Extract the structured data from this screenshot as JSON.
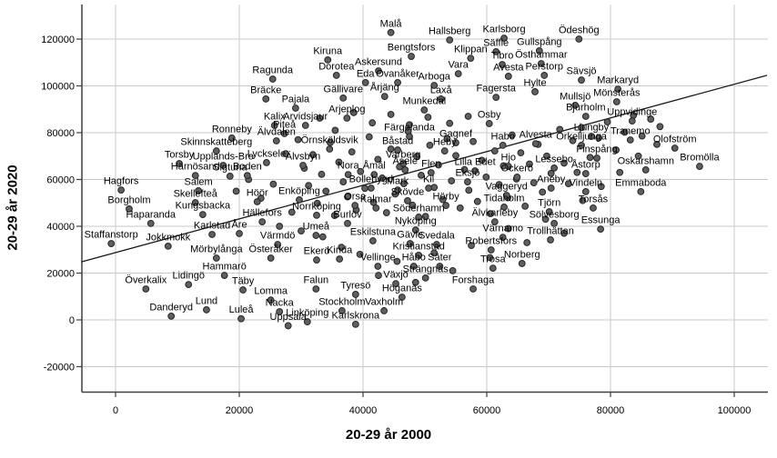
{
  "chart_data": {
    "type": "scatter",
    "title": "",
    "xlabel": "20-29 år 2000",
    "ylabel": "20-29 år 2020",
    "x_ticks": [
      0,
      20000,
      40000,
      60000,
      80000,
      100000
    ],
    "y_ticks": [
      -20000,
      0,
      20000,
      40000,
      60000,
      80000,
      100000,
      120000
    ],
    "xlim": [
      -5500,
      105400
    ],
    "ylim": [
      -31000,
      134700
    ],
    "grid": true,
    "legend": "none",
    "trend_line": {
      "x1": -5500,
      "y1": 24800,
      "x2": 105300,
      "y2": 104500
    },
    "points": [
      {
        "label": "Malå",
        "x": 44500,
        "y": 122800
      },
      {
        "label": "Hallsberg",
        "x": 54000,
        "y": 119600
      },
      {
        "label": "Karlsborg",
        "x": 62800,
        "y": 120400
      },
      {
        "label": "Ödeshög",
        "x": 74900,
        "y": 120000
      },
      {
        "label": "Bengtsfors",
        "x": 47800,
        "y": 112600
      },
      {
        "label": "Säffle",
        "x": 61500,
        "y": 114600
      },
      {
        "label": "Gullspång",
        "x": 68500,
        "y": 115000
      },
      {
        "label": "Klippan",
        "x": 57400,
        "y": 111800
      },
      {
        "label": "Tibro",
        "x": 62500,
        "y": 109100
      },
      {
        "label": "Östhammar",
        "x": 68800,
        "y": 109500
      },
      {
        "label": "Kiruna",
        "x": 34300,
        "y": 111100
      },
      {
        "label": "Dorotea",
        "x": 35700,
        "y": 104500
      },
      {
        "label": "Askersund",
        "x": 42500,
        "y": 106400
      },
      {
        "label": "Eda",
        "x": 40400,
        "y": 101400
      },
      {
        "label": "Ovanåker",
        "x": 45600,
        "y": 101400
      },
      {
        "label": "Vara",
        "x": 55400,
        "y": 105200
      },
      {
        "label": "Arboga",
        "x": 51500,
        "y": 100200
      },
      {
        "label": "Avesta",
        "x": 63500,
        "y": 104100
      },
      {
        "label": "Perstorp",
        "x": 69300,
        "y": 104500
      },
      {
        "label": "Sävsjö",
        "x": 75300,
        "y": 102500
      },
      {
        "label": "Ragunda",
        "x": 25400,
        "y": 102900
      },
      {
        "label": "Bräcke",
        "x": 24300,
        "y": 94400
      },
      {
        "label": "Pajala",
        "x": 29100,
        "y": 90500
      },
      {
        "label": "Gällivare",
        "x": 36800,
        "y": 94800
      },
      {
        "label": "Årjäng",
        "x": 43500,
        "y": 95500
      },
      {
        "label": "Laxå",
        "x": 52600,
        "y": 94400
      },
      {
        "label": "Fagersta",
        "x": 61500,
        "y": 95100
      },
      {
        "label": "Hylte",
        "x": 67800,
        "y": 97500
      },
      {
        "label": "Markaryd",
        "x": 81200,
        "y": 98600
      },
      {
        "label": "Mullsjö",
        "x": 74300,
        "y": 91700
      },
      {
        "label": "Mönsterås",
        "x": 81000,
        "y": 93200
      },
      {
        "label": "Kalix",
        "x": 25700,
        "y": 83100
      },
      {
        "label": "Arvidsjaur",
        "x": 30700,
        "y": 83100
      },
      {
        "label": "Arjeplog",
        "x": 37400,
        "y": 86200
      },
      {
        "label": "Piteå",
        "x": 27300,
        "y": 79600
      },
      {
        "label": "Munkedal",
        "x": 49900,
        "y": 89700
      },
      {
        "label": "Osby",
        "x": 60400,
        "y": 83900
      },
      {
        "label": "Bjurholm",
        "x": 76000,
        "y": 87000
      },
      {
        "label": "Uppvidinge",
        "x": 83500,
        "y": 85000
      },
      {
        "label": "Ronneby",
        "x": 18800,
        "y": 77700
      },
      {
        "label": "Älvdalen",
        "x": 26000,
        "y": 76500
      },
      {
        "label": "Örnsköldsvik",
        "x": 34600,
        "y": 73000
      },
      {
        "label": "Skinnskatteberg",
        "x": 16300,
        "y": 72200
      },
      {
        "label": "Båstad",
        "x": 45600,
        "y": 72600
      },
      {
        "label": "Varberg",
        "x": 46500,
        "y": 66800
      },
      {
        "label": "Färgelanda",
        "x": 47500,
        "y": 78400
      },
      {
        "label": "Gagnef",
        "x": 55000,
        "y": 75700
      },
      {
        "label": "Ljungby",
        "x": 76900,
        "y": 78400
      },
      {
        "label": "Tranemo",
        "x": 83200,
        "y": 76900
      },
      {
        "label": "Heby",
        "x": 53200,
        "y": 72200
      },
      {
        "label": "Habo",
        "x": 62600,
        "y": 74600
      },
      {
        "label": "Alvesta",
        "x": 67900,
        "y": 75300
      },
      {
        "label": "Örkelljunga",
        "x": 75300,
        "y": 74600
      },
      {
        "label": "Olofström",
        "x": 90400,
        "y": 73400
      },
      {
        "label": "Finspång",
        "x": 77800,
        "y": 69100
      },
      {
        "label": "Torsby",
        "x": 10300,
        "y": 66800
      },
      {
        "label": "Upplands-Bro",
        "x": 17400,
        "y": 66000
      },
      {
        "label": "Lycksele",
        "x": 24400,
        "y": 67200
      },
      {
        "label": "Härnösand",
        "x": 12900,
        "y": 61700
      },
      {
        "label": "Sigtuna",
        "x": 18500,
        "y": 61400
      },
      {
        "label": "Boden",
        "x": 21300,
        "y": 61700
      },
      {
        "label": "Älvsbyn",
        "x": 30300,
        "y": 66000
      },
      {
        "label": "Nora",
        "x": 37600,
        "y": 62100
      },
      {
        "label": "Åmål",
        "x": 41800,
        "y": 62100
      },
      {
        "label": "Åsele",
        "x": 46800,
        "y": 64100
      },
      {
        "label": "Flen",
        "x": 51000,
        "y": 62900
      },
      {
        "label": "Lilla Edet",
        "x": 58100,
        "y": 63700
      },
      {
        "label": "Hjo",
        "x": 63500,
        "y": 65600
      },
      {
        "label": "Lessebo",
        "x": 70900,
        "y": 64900
      },
      {
        "label": "Åstorp",
        "x": 76000,
        "y": 62500
      },
      {
        "label": "Oskarshamn",
        "x": 85700,
        "y": 64100
      },
      {
        "label": "Bromölla",
        "x": 94400,
        "y": 65600
      },
      {
        "label": "Hagfors",
        "x": 900,
        "y": 55500
      },
      {
        "label": "Salem",
        "x": 13400,
        "y": 55200
      },
      {
        "label": "Skellefteå",
        "x": 12900,
        "y": 50100
      },
      {
        "label": "Kungsbacka",
        "x": 14100,
        "y": 45000
      },
      {
        "label": "Borgholm",
        "x": 2200,
        "y": 47400
      },
      {
        "label": "Haparanda",
        "x": 5700,
        "y": 41200
      },
      {
        "label": "Höör",
        "x": 22900,
        "y": 50500
      },
      {
        "label": "Enköping",
        "x": 29700,
        "y": 51300
      },
      {
        "label": "Eksjö",
        "x": 56900,
        "y": 59000
      },
      {
        "label": "Öckerö",
        "x": 64900,
        "y": 61000
      },
      {
        "label": "Bollebygd",
        "x": 41300,
        "y": 56300
      },
      {
        "label": "Mark",
        "x": 45600,
        "y": 55500
      },
      {
        "label": "Kil",
        "x": 50600,
        "y": 56300
      },
      {
        "label": "Skövde",
        "x": 47200,
        "y": 50900
      },
      {
        "label": "Orsa",
        "x": 38700,
        "y": 48900
      },
      {
        "label": "Kalmar",
        "x": 42100,
        "y": 47800
      },
      {
        "label": "Hörby",
        "x": 53400,
        "y": 48900
      },
      {
        "label": "Aneby",
        "x": 70400,
        "y": 56300
      },
      {
        "label": "Vindeln",
        "x": 76000,
        "y": 54800
      },
      {
        "label": "Emmaboda",
        "x": 84900,
        "y": 54800
      },
      {
        "label": "Vaggeryd",
        "x": 63200,
        "y": 53200
      },
      {
        "label": "Tidaholm",
        "x": 62800,
        "y": 48200
      },
      {
        "label": "Tjörn",
        "x": 70100,
        "y": 46200
      },
      {
        "label": "Torsås",
        "x": 77200,
        "y": 47800
      },
      {
        "label": "Söderhamn",
        "x": 49000,
        "y": 43900
      },
      {
        "label": "Älvkarleby",
        "x": 61300,
        "y": 41900
      },
      {
        "label": "Sölvesborg",
        "x": 70900,
        "y": 41200
      },
      {
        "label": "Essunga",
        "x": 78400,
        "y": 38800
      },
      {
        "label": "Nyköping",
        "x": 48500,
        "y": 38400
      },
      {
        "label": "Hällefors",
        "x": 23700,
        "y": 41900
      },
      {
        "label": "Norrköping",
        "x": 32500,
        "y": 44700
      },
      {
        "label": "Burlöv",
        "x": 37500,
        "y": 41200
      },
      {
        "label": "Umeå",
        "x": 32400,
        "y": 36100
      },
      {
        "label": "Eskilstuna",
        "x": 41600,
        "y": 33800
      },
      {
        "label": "Gävle",
        "x": 47600,
        "y": 32600
      },
      {
        "label": "Svedala",
        "x": 51900,
        "y": 32200
      },
      {
        "label": "Karlstad",
        "x": 15600,
        "y": 36500
      },
      {
        "label": "Åre",
        "x": 20000,
        "y": 36900
      },
      {
        "label": "Värmdö",
        "x": 26200,
        "y": 32200
      },
      {
        "label": "Staffanstorp",
        "x": -700,
        "y": 32600
      },
      {
        "label": "Jokkmokk",
        "x": 8500,
        "y": 31500
      },
      {
        "label": "Mörbylånga",
        "x": 16300,
        "y": 26400
      },
      {
        "label": "Österåker",
        "x": 25100,
        "y": 26400
      },
      {
        "label": "Ekerö",
        "x": 32500,
        "y": 25600
      },
      {
        "label": "Kinda",
        "x": 36200,
        "y": 26000
      },
      {
        "label": "Kristianstad",
        "x": 49000,
        "y": 27600
      },
      {
        "label": "Vellinge",
        "x": 42400,
        "y": 22900
      },
      {
        "label": "Håbo",
        "x": 48200,
        "y": 22900
      },
      {
        "label": "Säter",
        "x": 52400,
        "y": 22900
      },
      {
        "label": "Strängnäs",
        "x": 50100,
        "y": 17900
      },
      {
        "label": "Växjö",
        "x": 45300,
        "y": 15500
      },
      {
        "label": "Trosa",
        "x": 61000,
        "y": 22100
      },
      {
        "label": "Norberg",
        "x": 65700,
        "y": 24100
      },
      {
        "label": "Robertsfors",
        "x": 60700,
        "y": 29900
      },
      {
        "label": "Värnamo",
        "x": 62600,
        "y": 35300
      },
      {
        "label": "Trollhättan",
        "x": 70300,
        "y": 34200
      },
      {
        "label": "Forshaga",
        "x": 57800,
        "y": 13200
      },
      {
        "label": "Höganäs",
        "x": 46300,
        "y": 9700
      },
      {
        "label": "Hammarö",
        "x": 17600,
        "y": 19000
      },
      {
        "label": "Lidingö",
        "x": 11800,
        "y": 15100
      },
      {
        "label": "Överkalix",
        "x": 4900,
        "y": 13200
      },
      {
        "label": "Täby",
        "x": 20600,
        "y": 12800
      },
      {
        "label": "Falun",
        "x": 32400,
        "y": 13200
      },
      {
        "label": "Tyresö",
        "x": 38800,
        "y": 10900
      },
      {
        "label": "Lomma",
        "x": 25100,
        "y": 8500
      },
      {
        "label": "Nacka",
        "x": 26500,
        "y": 3500
      },
      {
        "label": "Stockholm",
        "x": 36600,
        "y": 3900
      },
      {
        "label": "Vaxholm",
        "x": 43400,
        "y": 3900
      },
      {
        "label": "Lund",
        "x": 14700,
        "y": 4300
      },
      {
        "label": "Danderyd",
        "x": 9000,
        "y": 1600
      },
      {
        "label": "Luleå",
        "x": 20300,
        "y": 500
      },
      {
        "label": "Linköping",
        "x": 31000,
        "y": -800
      },
      {
        "label": "Karlskrona",
        "x": 38800,
        "y": -1900
      },
      {
        "label": "Uppsala",
        "x": 27900,
        "y": -2500
      }
    ],
    "unlabeled_points": [
      [
        30500,
        64800
      ],
      [
        31200,
        57400
      ],
      [
        31900,
        70600
      ],
      [
        32600,
        49800
      ],
      [
        33300,
        62200
      ],
      [
        34000,
        55000
      ],
      [
        34700,
        75800
      ],
      [
        35400,
        44600
      ],
      [
        36100,
        67400
      ],
      [
        36800,
        59000
      ],
      [
        37500,
        52600
      ],
      [
        38200,
        71800
      ],
      [
        38900,
        47000
      ],
      [
        39600,
        63400
      ],
      [
        40300,
        56200
      ],
      [
        41000,
        78200
      ],
      [
        41700,
        50200
      ],
      [
        42400,
        68600
      ],
      [
        43100,
        60600
      ],
      [
        43800,
        45800
      ],
      [
        44500,
        73000
      ],
      [
        45200,
        53800
      ],
      [
        45900,
        65400
      ],
      [
        46600,
        58200
      ],
      [
        47300,
        80600
      ],
      [
        48000,
        49000
      ],
      [
        48700,
        69800
      ],
      [
        49400,
        61800
      ],
      [
        50100,
        44200
      ],
      [
        50800,
        74600
      ],
      [
        51500,
        56600
      ],
      [
        52200,
        66200
      ],
      [
        52900,
        51400
      ],
      [
        53600,
        77400
      ],
      [
        54300,
        59400
      ],
      [
        55000,
        70200
      ],
      [
        55700,
        47800
      ],
      [
        56400,
        64200
      ],
      [
        57100,
        55400
      ],
      [
        57800,
        76200
      ],
      [
        58500,
        50600
      ],
      [
        59200,
        68200
      ],
      [
        59900,
        61000
      ],
      [
        60600,
        45400
      ],
      [
        61300,
        72200
      ],
      [
        62000,
        57800
      ],
      [
        62700,
        65800
      ],
      [
        63400,
        52200
      ],
      [
        64100,
        79000
      ],
      [
        64800,
        60200
      ],
      [
        65500,
        71400
      ],
      [
        66200,
        48600
      ],
      [
        66900,
        66600
      ],
      [
        67600,
        58600
      ],
      [
        68300,
        75000
      ],
      [
        69000,
        54600
      ],
      [
        69700,
        70000
      ],
      [
        70400,
        62600
      ],
      [
        71800,
        81400
      ],
      [
        72500,
        67000
      ],
      [
        73200,
        58200
      ],
      [
        73900,
        76600
      ],
      [
        74600,
        63000
      ],
      [
        75300,
        82200
      ],
      [
        76700,
        69400
      ],
      [
        78100,
        77800
      ],
      [
        79500,
        84600
      ],
      [
        80900,
        72600
      ],
      [
        82300,
        80200
      ],
      [
        83700,
        87400
      ],
      [
        85100,
        78600
      ],
      [
        86500,
        85800
      ],
      [
        88000,
        82600
      ],
      [
        57000,
        87000
      ],
      [
        54000,
        84000
      ],
      [
        50500,
        86600
      ],
      [
        47500,
        83400
      ],
      [
        44500,
        87800
      ],
      [
        41500,
        84200
      ],
      [
        38500,
        88600
      ],
      [
        35500,
        81000
      ],
      [
        33000,
        86200
      ],
      [
        29500,
        77000
      ],
      [
        27500,
        71000
      ],
      [
        25500,
        58000
      ],
      [
        23500,
        52000
      ],
      [
        21500,
        60000
      ],
      [
        19500,
        55000
      ],
      [
        28500,
        46000
      ],
      [
        26500,
        40000
      ],
      [
        30000,
        38000
      ],
      [
        33500,
        35500
      ],
      [
        36500,
        31000
      ],
      [
        39500,
        28000
      ],
      [
        42500,
        19000
      ],
      [
        45500,
        25000
      ],
      [
        48500,
        16000
      ],
      [
        51500,
        28600
      ],
      [
        54500,
        21000
      ],
      [
        57500,
        31800
      ],
      [
        60500,
        26600
      ],
      [
        63500,
        39000
      ],
      [
        66500,
        33000
      ],
      [
        69500,
        43000
      ],
      [
        72500,
        37000
      ],
      [
        75500,
        51000
      ],
      [
        78500,
        57000
      ],
      [
        81500,
        63000
      ],
      [
        84500,
        70000
      ],
      [
        87500,
        75000
      ]
    ]
  },
  "styles": {
    "background": "#ffffff",
    "dot_fill": "#5f5f5f",
    "dot_stroke": "#262626",
    "grid_color": "#c9c9c9",
    "axis_color": "#3f3f3f",
    "tick_label_color": "#000000",
    "point_label_color": "#000000",
    "trend_line_color": "#1a1a1a"
  }
}
